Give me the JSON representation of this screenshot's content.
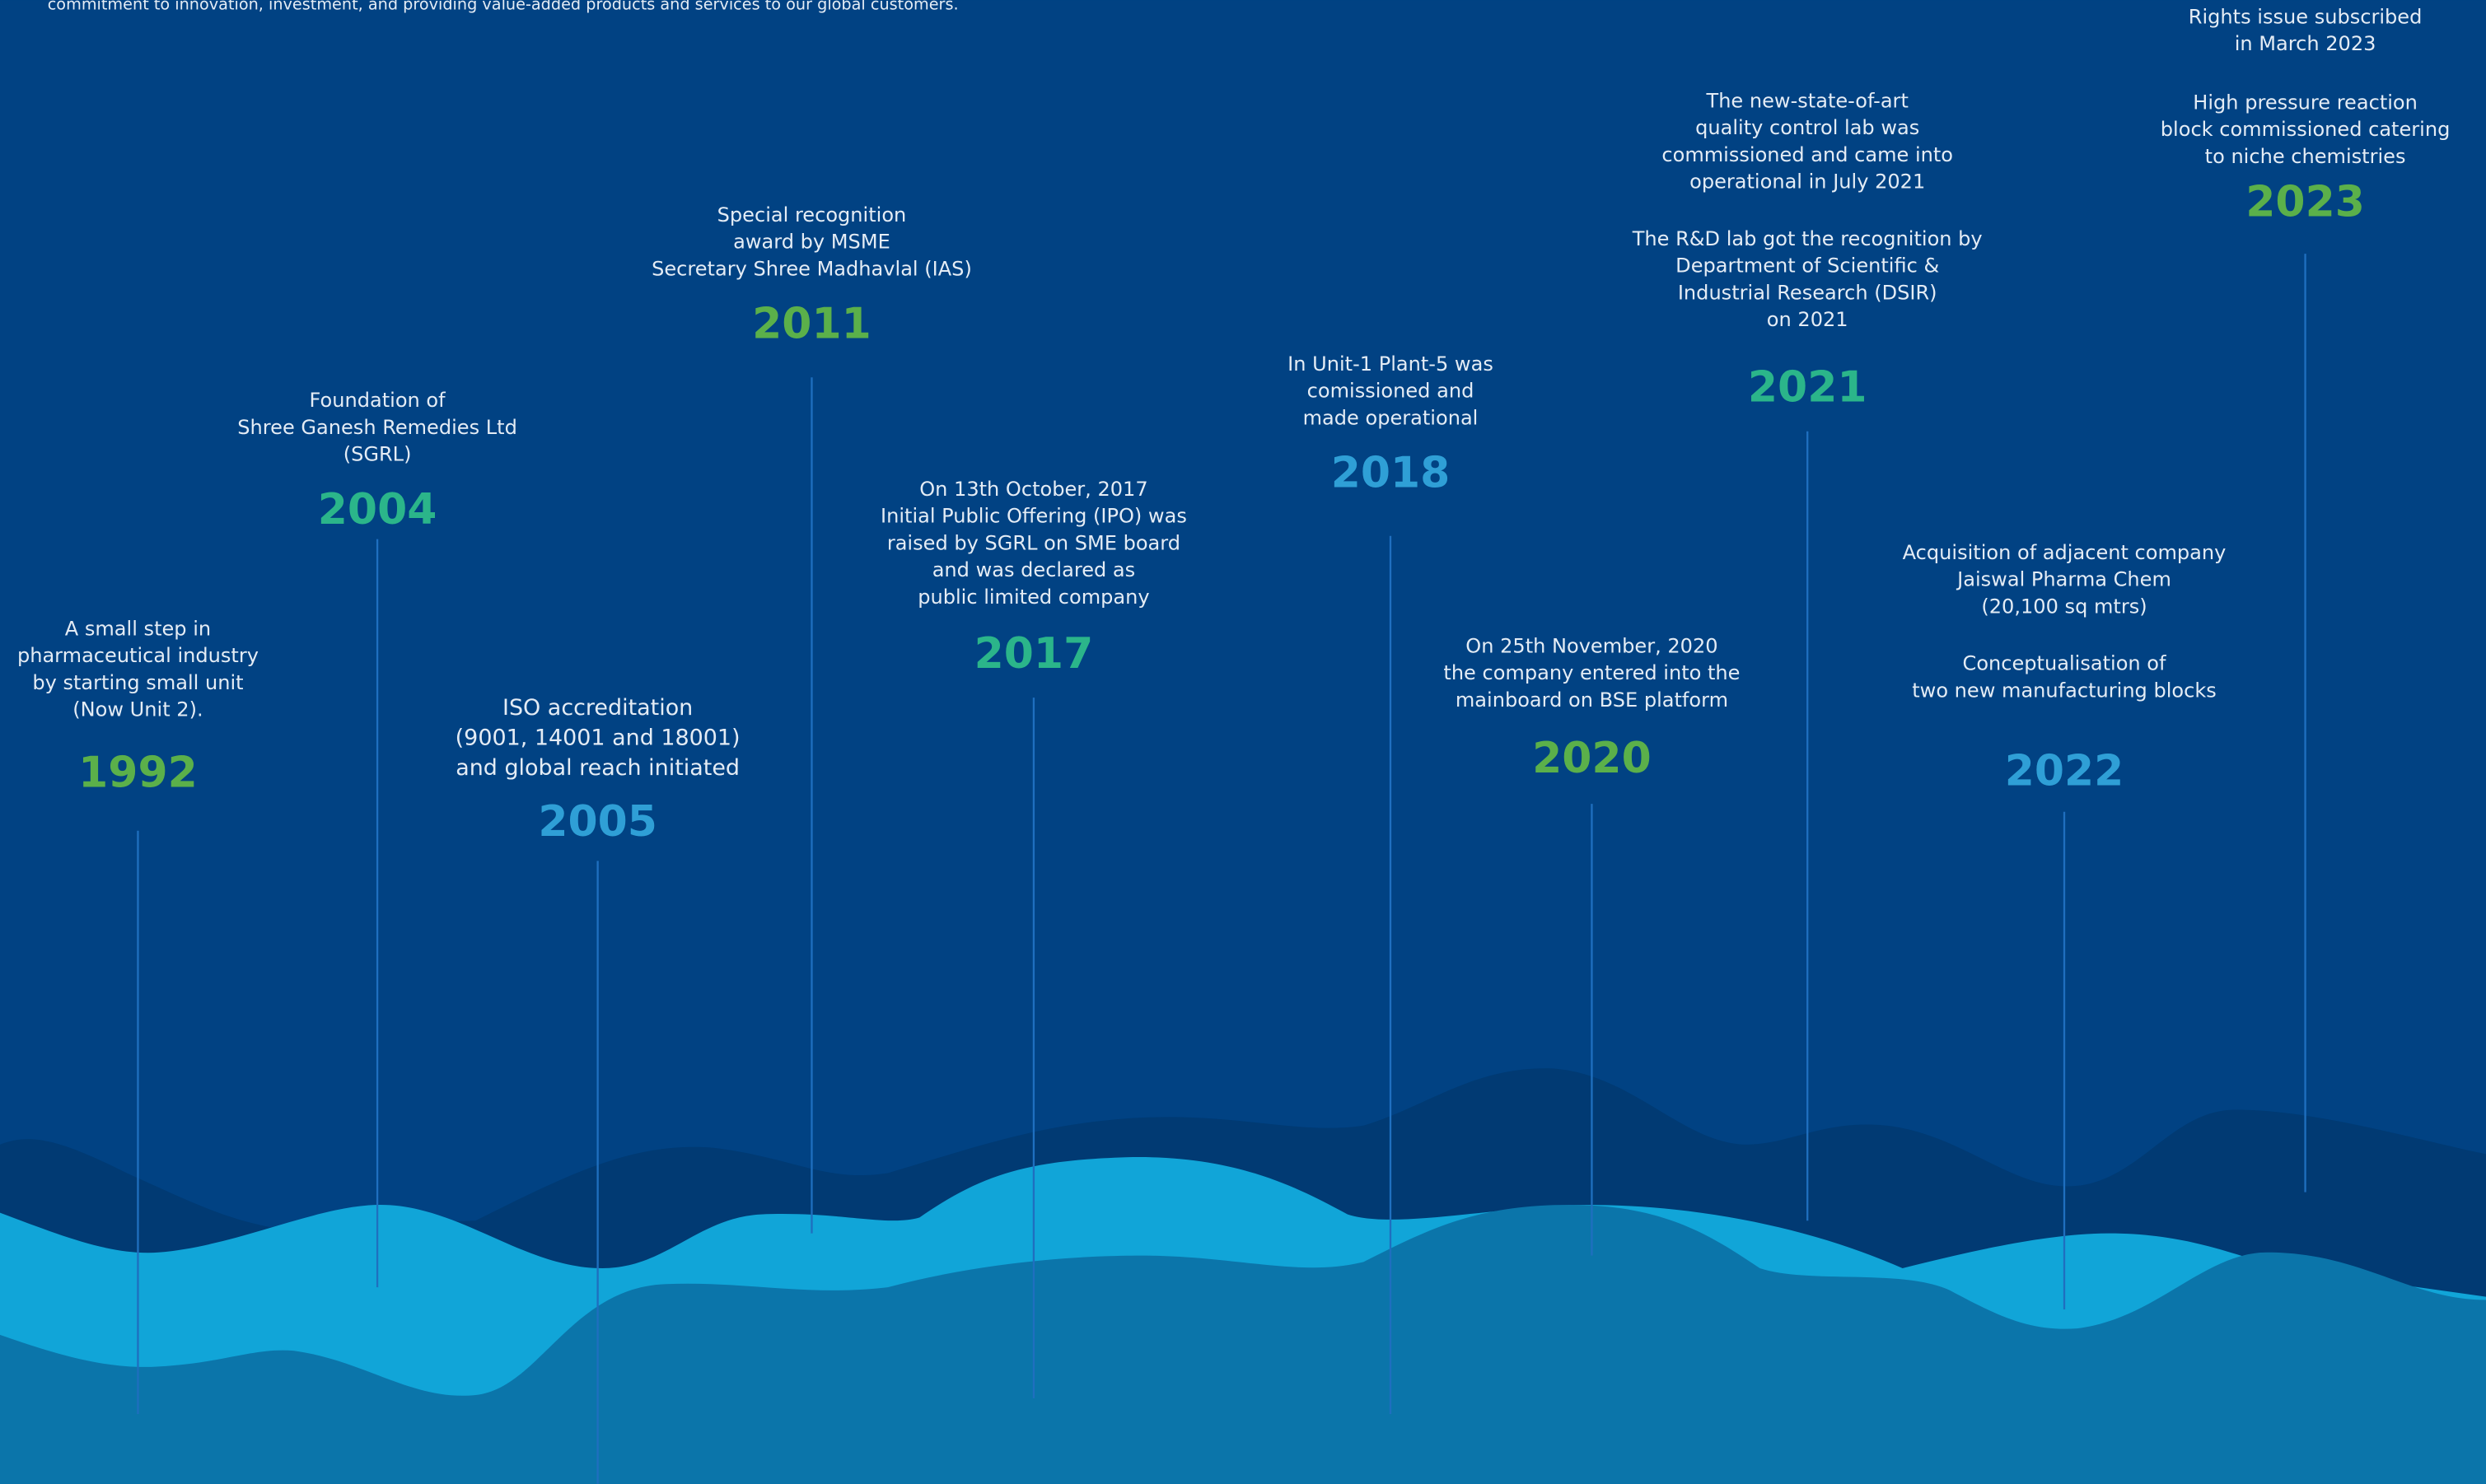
{
  "intro": "commitment to innovation, investment, and providing value-added products and services to our global customers.",
  "events": [
    {
      "year": "1992",
      "lines": [
        "A small step in",
        "pharmaceutical industry",
        "by starting small unit",
        "(Now Unit 2)."
      ]
    },
    {
      "year": "2004",
      "lines": [
        "Foundation of",
        "Shree Ganesh Remedies Ltd",
        "(SGRL)"
      ]
    },
    {
      "year": "2005",
      "lines": [
        "ISO accreditation",
        "(9001, 14001 and 18001)",
        "and global reach initiated"
      ]
    },
    {
      "year": "2011",
      "lines": [
        "Special recognition",
        "award by MSME",
        "Secretary Shree Madhavlal (IAS)"
      ]
    },
    {
      "year": "2017",
      "lines": [
        "On 13th October, 2017",
        "Initial Public Offering (IPO) was",
        "raised by SGRL on SME board",
        "and was declared as",
        "public limited company"
      ]
    },
    {
      "year": "2018",
      "lines": [
        "In Unit-1 Plant-5 was",
        "comissioned and",
        "made operational"
      ]
    },
    {
      "year": "2020",
      "lines": [
        "On 25th November, 2020",
        "the company entered into the",
        "mainboard on BSE platform"
      ]
    },
    {
      "year": "2021",
      "lines": [
        "The new-state-of-art",
        "quality control lab was",
        "commissioned and came into",
        "operational in July 2021",
        "The R&D lab got the recognition by",
        "Department of Scientific &",
        "Industrial Research (DSIR)",
        "on 2021"
      ]
    },
    {
      "year": "2022",
      "lines": [
        "Acquisition of adjacent company",
        "Jaiswal Pharma Chem",
        "(20,100 sq mtrs)",
        "Conceptualisation of",
        "two new manufacturing blocks"
      ]
    },
    {
      "year": "2023",
      "lines": [
        "Rights issue subscribed",
        "in March 2023",
        "High pressure reaction",
        "block commissioned catering",
        "to niche chemistries"
      ]
    }
  ]
}
